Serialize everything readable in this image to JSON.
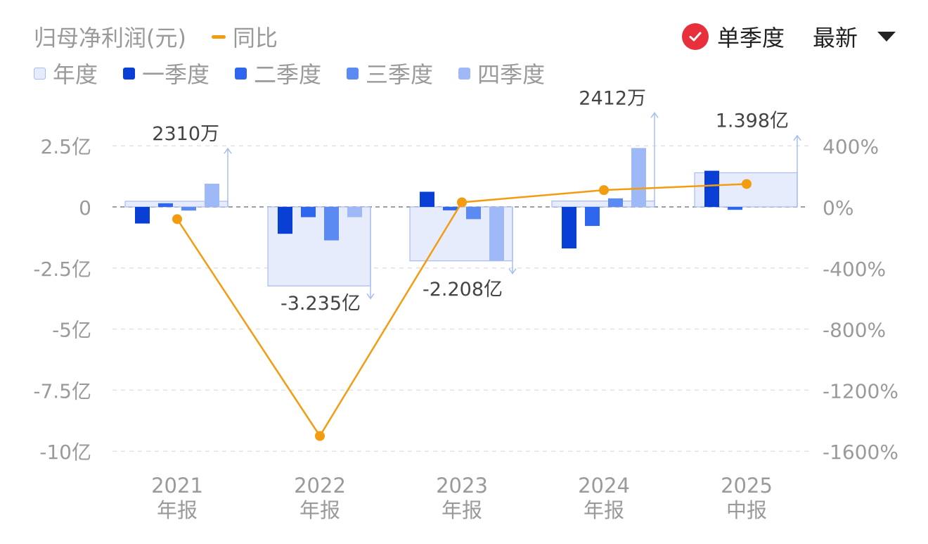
{
  "header": {
    "title": "归母净利润(元)",
    "yoy_label": "同比",
    "single_quarter_label": "单季度",
    "latest_label": "最新"
  },
  "legend": [
    {
      "name": "年度",
      "color": "#e6ecfb",
      "border": "#aabbee"
    },
    {
      "name": "一季度",
      "color": "#0a3fd6"
    },
    {
      "name": "二季度",
      "color": "#2f66ee"
    },
    {
      "name": "三季度",
      "color": "#5a8af2"
    },
    {
      "name": "四季度",
      "color": "#9fb8f7"
    }
  ],
  "colors": {
    "annual": "#e6ecfb",
    "annual_border": "#aabbee",
    "q1": "#0a3fd6",
    "q2": "#2f66ee",
    "q3": "#5a8af2",
    "q4": "#9fb8f7",
    "yoy": "#f39c12",
    "check": "#e8303d"
  },
  "chart_data": {
    "type": "bar",
    "categories": [
      {
        "year": "2021",
        "period": "年报"
      },
      {
        "year": "2022",
        "period": "年报"
      },
      {
        "year": "2023",
        "period": "年报"
      },
      {
        "year": "2024",
        "period": "年报"
      },
      {
        "year": "2025",
        "period": "中报"
      }
    ],
    "annual": [
      0.231,
      -3.235,
      -2.208,
      0.2412,
      1.398
    ],
    "series": [
      {
        "name": "一季度",
        "values": [
          -0.68,
          -1.1,
          0.62,
          -1.7,
          1.48
        ]
      },
      {
        "name": "二季度",
        "values": [
          0.15,
          -0.42,
          -0.14,
          -0.78,
          -0.12
        ]
      },
      {
        "name": "三季度",
        "values": [
          -0.15,
          -1.37,
          -0.5,
          0.35,
          null
        ]
      },
      {
        "name": "四季度",
        "values": [
          0.95,
          -0.42,
          -2.2,
          2.41,
          null
        ]
      }
    ],
    "yoy": [
      -80,
      -1500,
      30,
      110,
      150
    ],
    "annual_labels": [
      "2310万",
      "-3.235亿",
      "-2.208亿",
      "2412万",
      "1.398亿"
    ],
    "y_left": {
      "ticks": [
        2.5,
        0,
        -2.5,
        -5,
        -7.5,
        -10
      ],
      "tick_labels": [
        "2.5亿",
        "0",
        "-2.5亿",
        "-5亿",
        "-7.5亿",
        "-10亿"
      ],
      "range": [
        -10,
        2.5
      ]
    },
    "y_right": {
      "ticks": [
        400,
        0,
        -400,
        -800,
        -1200,
        -1600
      ],
      "tick_labels": [
        "400%",
        "0%",
        "-400%",
        "-800%",
        "-1200%",
        "-1600%"
      ],
      "range": [
        -1600,
        400
      ]
    },
    "grid": true
  }
}
